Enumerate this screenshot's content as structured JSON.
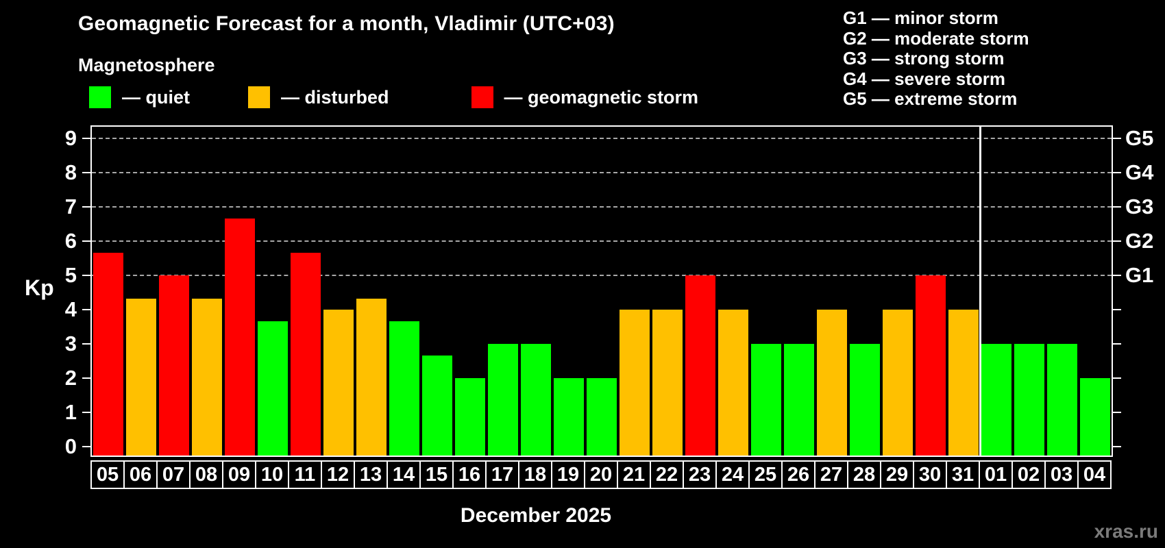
{
  "header": {
    "title": "Geomagnetic Forecast for a month, Vladimir (UTC+03)",
    "subtitle": "Magnetosphere"
  },
  "legend": [
    {
      "status": "quiet",
      "label": "— quiet",
      "color": "#00ff00"
    },
    {
      "status": "disturbed",
      "label": "— disturbed",
      "color": "#ffc000"
    },
    {
      "status": "storm",
      "label": "— geomagnetic storm",
      "color": "#ff0000"
    }
  ],
  "g_scale_legend": [
    "G1 — minor storm",
    "G2 — moderate storm",
    "G3 — strong storm",
    "G4 — severe storm",
    "G5 — extreme storm"
  ],
  "y_axis": {
    "label": "Kp",
    "ticks": [
      0,
      1,
      2,
      3,
      4,
      5,
      6,
      7,
      8,
      9
    ]
  },
  "right_axis": {
    "labels": [
      {
        "text": "G1",
        "kp": 5
      },
      {
        "text": "G2",
        "kp": 6
      },
      {
        "text": "G3",
        "kp": 7
      },
      {
        "text": "G4",
        "kp": 8
      },
      {
        "text": "G5",
        "kp": 9
      }
    ]
  },
  "x_axis_title": "December 2025",
  "watermark": "xras.ru",
  "chart_data": {
    "type": "bar",
    "title": "Geomagnetic Forecast for a month, Vladimir (UTC+03)",
    "ylabel": "Kp",
    "ylim": [
      -0.3,
      9.4
    ],
    "grid": "dashed horizontal lines at Kp 5..9 only",
    "gridlines_at": [
      5,
      6,
      7,
      8,
      9
    ],
    "legend_position": "top",
    "month_separator_after_index": 26,
    "categories": [
      "05",
      "06",
      "07",
      "08",
      "09",
      "10",
      "11",
      "12",
      "13",
      "14",
      "15",
      "16",
      "17",
      "18",
      "19",
      "20",
      "21",
      "22",
      "23",
      "24",
      "25",
      "26",
      "27",
      "28",
      "29",
      "30",
      "31",
      "01",
      "02",
      "03",
      "04"
    ],
    "values": [
      5.67,
      4.33,
      5,
      4.33,
      6.67,
      3.67,
      5.67,
      4,
      4.33,
      3.67,
      2.67,
      2,
      3,
      3,
      2,
      2,
      4,
      4,
      5,
      4,
      3,
      3,
      4,
      3,
      4,
      5,
      4,
      3,
      3,
      3,
      2
    ],
    "statuses": [
      "storm",
      "disturbed",
      "storm",
      "disturbed",
      "storm",
      "quiet",
      "storm",
      "disturbed",
      "disturbed",
      "quiet",
      "quiet",
      "quiet",
      "quiet",
      "quiet",
      "quiet",
      "quiet",
      "disturbed",
      "disturbed",
      "storm",
      "disturbed",
      "quiet",
      "quiet",
      "disturbed",
      "quiet",
      "disturbed",
      "storm",
      "disturbed",
      "quiet",
      "quiet",
      "quiet",
      "quiet"
    ]
  },
  "colors": {
    "background": "#000000",
    "quiet": "#00ff00",
    "disturbed": "#ffc000",
    "storm": "#ff0000",
    "gridline": "#a8a8a8",
    "frame": "#ffffff",
    "watermark": "#7b7b7b"
  }
}
